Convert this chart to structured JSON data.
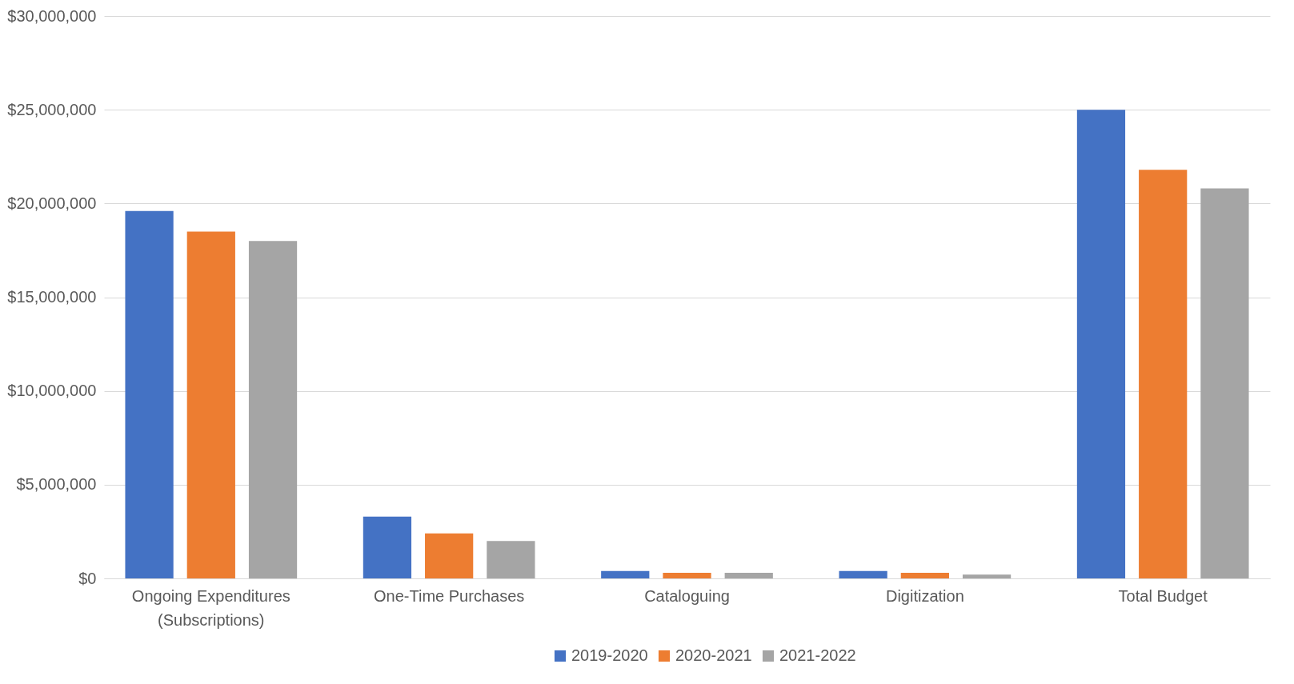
{
  "chart_data": {
    "type": "bar",
    "categories": [
      "Ongoing Expenditures\n(Subscriptions)",
      "One-Time Purchases",
      "Cataloguing",
      "Digitization",
      "Total Budget"
    ],
    "series": [
      {
        "name": "2019-2020",
        "color": "#4472c4",
        "values": [
          19600000,
          3300000,
          400000,
          400000,
          25000000
        ]
      },
      {
        "name": "2020-2021",
        "color": "#ed7d31",
        "values": [
          18500000,
          2400000,
          300000,
          300000,
          21800000
        ]
      },
      {
        "name": "2021-2022",
        "color": "#a5a5a5",
        "values": [
          18000000,
          2000000,
          300000,
          200000,
          20800000
        ]
      }
    ],
    "ylim": [
      0,
      30000000
    ],
    "yticks": [
      {
        "value": 0,
        "label": "$0"
      },
      {
        "value": 5000000,
        "label": "$5,000,000"
      },
      {
        "value": 10000000,
        "label": "$10,000,000"
      },
      {
        "value": 15000000,
        "label": "$15,000,000"
      },
      {
        "value": 20000000,
        "label": "$20,000,000"
      },
      {
        "value": 25000000,
        "label": "$25,000,000"
      },
      {
        "value": 30000000,
        "label": "$30,000,000"
      }
    ],
    "grid": "y",
    "legend": "bottom"
  }
}
